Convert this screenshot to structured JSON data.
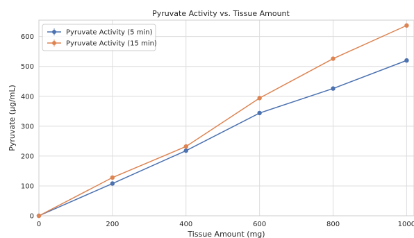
{
  "chart_data": {
    "type": "line",
    "title": "Pyruvate Activity vs. Tissue Amount",
    "xlabel": "Tissue Amount (mg)",
    "ylabel": "Pyruvate (µg/mL)",
    "xlim": [
      0,
      1020
    ],
    "ylim": [
      0,
      655
    ],
    "xticks": [
      0,
      200,
      400,
      600,
      800,
      1000
    ],
    "yticks": [
      0,
      100,
      200,
      300,
      400,
      500,
      600
    ],
    "grid": true,
    "legend_position": "top-left",
    "series": [
      {
        "name": "Pyruvate Activity (5 min)",
        "color": "#4c72b0",
        "marker": "circle",
        "x": [
          0,
          200,
          400,
          600,
          800,
          1000
        ],
        "y": [
          0,
          108,
          218,
          344,
          426,
          520
        ]
      },
      {
        "name": "Pyruvate Activity (15 min)",
        "color": "#dd8452",
        "marker": "circle",
        "x": [
          0,
          200,
          400,
          600,
          800,
          1000
        ],
        "y": [
          0,
          128,
          232,
          394,
          526,
          637
        ]
      }
    ]
  }
}
